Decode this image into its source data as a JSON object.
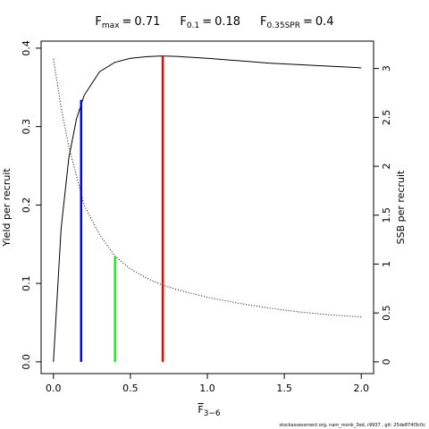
{
  "chart_data": {
    "type": "line",
    "title": [
      {
        "symbol": "F",
        "subscript": "max",
        "relation": "=",
        "value": 0.71
      },
      {
        "symbol": "F",
        "subscript": "0.1",
        "relation": "=",
        "value": 0.18
      },
      {
        "symbol": "F",
        "subscript": "0.35SPR",
        "relation": "=",
        "value": 0.4
      }
    ],
    "x_label": {
      "symbol": "F",
      "subscript": "3−6"
    },
    "y_label": "Yield per recruit",
    "y2_label": "SSB per recruit",
    "footer": "stockassessment.org, nam_monk_3ed, r9937 , git: 25de874f3c0c",
    "x": [
      0,
      0.05,
      0.1,
      0.15,
      0.2,
      0.3,
      0.4,
      0.5,
      0.6,
      0.7,
      0.8,
      1.0,
      1.2,
      1.4,
      1.6,
      1.8,
      2.0
    ],
    "series": [
      {
        "name": "Yield per recruit",
        "color": "#000000",
        "dash": "solid",
        "values": [
          0,
          0.17,
          0.26,
          0.31,
          0.34,
          0.37,
          0.382,
          0.387,
          0.389,
          0.39,
          0.3895,
          0.387,
          0.384,
          0.381,
          0.379,
          0.377,
          0.375
        ]
      },
      {
        "name": "SSB per recruit",
        "color": "#000000",
        "dash": "dotted",
        "axis": "y2",
        "values": [
          3.1,
          2.6,
          2.2,
          1.9,
          1.6,
          1.3,
          1.08,
          0.95,
          0.86,
          0.79,
          0.74,
          0.66,
          0.6,
          0.55,
          0.51,
          0.48,
          0.46
        ]
      }
    ],
    "reference_lines": [
      {
        "x": 0.71,
        "height": 0.39,
        "color": "#ff0000"
      },
      {
        "x": 0.18,
        "height": 0.334,
        "color": "#0000ff"
      },
      {
        "x": 0.4,
        "height": 1.08,
        "color": "#00ff00",
        "axis": "y2"
      }
    ],
    "xlim": [
      -0.08,
      2.08
    ],
    "ylim": [
      -0.015,
      0.409
    ],
    "y2lim": [
      -0.12,
      3.28
    ],
    "xticks": [
      {
        "value": 0,
        "label": "0.0"
      },
      0.5,
      {
        "value": 1,
        "label": "1.0"
      },
      1.5,
      {
        "value": 2,
        "label": "2.0"
      }
    ],
    "yticks": [
      {
        "value": 0,
        "label": "0.0"
      },
      0.1,
      0.2,
      0.3,
      0.4
    ],
    "y2ticks": [
      0,
      0.5,
      1,
      1.5,
      2,
      2.5,
      3
    ]
  }
}
